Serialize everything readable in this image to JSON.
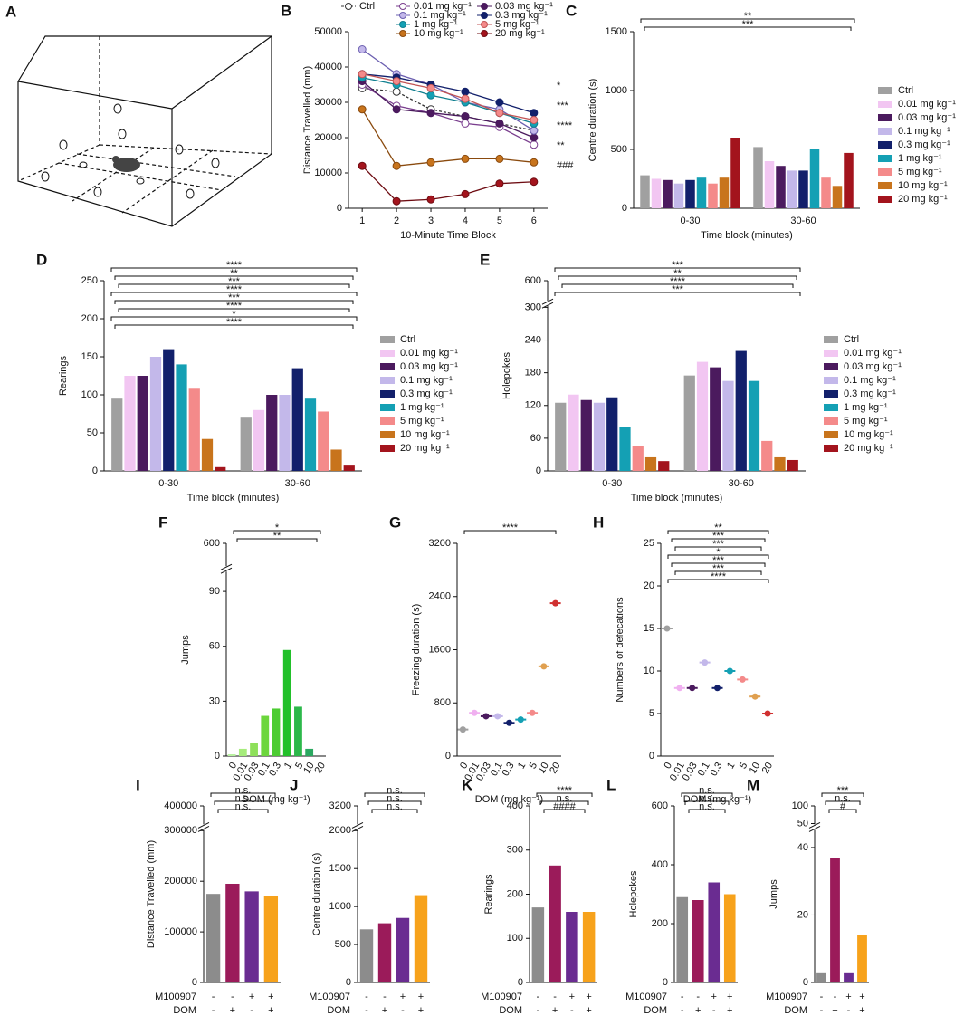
{
  "panel_a": {
    "label": "A"
  },
  "chart_data": [
    {
      "panel": "B",
      "type": "line",
      "xlabel": "10-Minute Time Block",
      "ylabel": "Distance Travelled (mm)",
      "x": [
        1,
        2,
        3,
        4,
        5,
        6
      ],
      "xlim": [
        0.6,
        6.4
      ],
      "xticks": [
        1,
        2,
        3,
        4,
        5,
        6
      ],
      "ylim": [
        0,
        50000
      ],
      "yticks": [
        0,
        10000,
        20000,
        30000,
        40000,
        50000
      ],
      "legend": "top",
      "series": [
        {
          "name": "Ctrl",
          "color": "#333333",
          "fill": "white",
          "dash": true,
          "values": [
            34000,
            33000,
            28000,
            26000,
            24000,
            22000
          ]
        },
        {
          "name": "0.01 mg kg⁻¹",
          "color": "#7a3e8e",
          "fill": "white",
          "values": [
            35000,
            29000,
            27000,
            24000,
            23000,
            18000
          ]
        },
        {
          "name": "0.03 mg kg⁻¹",
          "color": "#4b1a5e",
          "fill": "#4b1a5e",
          "values": [
            36000,
            28000,
            27000,
            26000,
            24000,
            20000
          ]
        },
        {
          "name": "0.1 mg kg⁻¹",
          "color": "#6b5fb0",
          "fill": "#c3b8ea",
          "values": [
            45000,
            38000,
            35000,
            30000,
            28000,
            22000
          ]
        },
        {
          "name": "0.3 mg kg⁻¹",
          "color": "#12206b",
          "fill": "#12206b",
          "values": [
            38000,
            37000,
            35000,
            33000,
            30000,
            27000
          ]
        },
        {
          "name": "1 mg kg⁻¹",
          "color": "#0f7f8f",
          "fill": "#14a0b4",
          "values": [
            37000,
            35000,
            32000,
            30000,
            27000,
            24000
          ]
        },
        {
          "name": "5 mg kg⁻¹",
          "color": "#c25454",
          "fill": "#f48a8a",
          "values": [
            38000,
            36000,
            34000,
            31000,
            27000,
            25000
          ]
        },
        {
          "name": "10 mg kg⁻¹",
          "color": "#8a4a0e",
          "fill": "#c8741c",
          "values": [
            28000,
            12000,
            13000,
            14000,
            14000,
            13000
          ]
        },
        {
          "name": "20 mg kg⁻¹",
          "color": "#6e0c12",
          "fill": "#a3141d",
          "values": [
            12000,
            2000,
            2500,
            4000,
            7000,
            7500
          ]
        }
      ],
      "annotations": [
        "*",
        "***",
        "****",
        "**",
        "###"
      ]
    },
    {
      "panel": "C",
      "type": "bar",
      "xlabel": "Time block (minutes)",
      "ylabel": "Centre duration (s)",
      "categories": [
        "0-30",
        "30-60"
      ],
      "ylim": [
        0,
        1500
      ],
      "yticks": [
        0,
        500,
        1000,
        1500
      ],
      "legend": "right",
      "series": [
        {
          "name": "Ctrl",
          "color": "#a0a0a0",
          "values": [
            280,
            520
          ]
        },
        {
          "name": "0.01 mg kg⁻¹",
          "color": "#f2c6f2",
          "values": [
            250,
            400
          ]
        },
        {
          "name": "0.03 mg kg⁻¹",
          "color": "#4b1a5e",
          "values": [
            240,
            360
          ]
        },
        {
          "name": "0.1 mg kg⁻¹",
          "color": "#c3b8ea",
          "values": [
            210,
            320
          ]
        },
        {
          "name": "0.3 mg kg⁻¹",
          "color": "#12206b",
          "values": [
            240,
            320
          ]
        },
        {
          "name": "1 mg kg⁻¹",
          "color": "#14a0b4",
          "values": [
            260,
            500
          ]
        },
        {
          "name": "5 mg kg⁻¹",
          "color": "#f48a8a",
          "values": [
            210,
            260
          ]
        },
        {
          "name": "10 mg kg⁻¹",
          "color": "#c8741c",
          "values": [
            260,
            190
          ]
        },
        {
          "name": "20 mg kg⁻¹",
          "color": "#a3141d",
          "values": [
            600,
            470
          ]
        }
      ],
      "annotations": [
        "**",
        "***"
      ]
    },
    {
      "panel": "D",
      "type": "bar",
      "xlabel": "Time block (minutes)",
      "ylabel": "Rearings",
      "categories": [
        "0-30",
        "30-60"
      ],
      "ylim": [
        0,
        250
      ],
      "yticks": [
        0,
        50,
        100,
        150,
        200,
        250
      ],
      "legend": "right",
      "series": [
        {
          "name": "Ctrl",
          "color": "#a0a0a0",
          "values": [
            95,
            70
          ]
        },
        {
          "name": "0.01 mg kg⁻¹",
          "color": "#f2c6f2",
          "values": [
            125,
            80
          ]
        },
        {
          "name": "0.03 mg kg⁻¹",
          "color": "#4b1a5e",
          "values": [
            125,
            100
          ]
        },
        {
          "name": "0.1 mg kg⁻¹",
          "color": "#c3b8ea",
          "values": [
            150,
            100
          ]
        },
        {
          "name": "0.3 mg kg⁻¹",
          "color": "#12206b",
          "values": [
            160,
            135
          ]
        },
        {
          "name": "1 mg kg⁻¹",
          "color": "#14a0b4",
          "values": [
            140,
            95
          ]
        },
        {
          "name": "5 mg kg⁻¹",
          "color": "#f48a8a",
          "values": [
            108,
            78
          ]
        },
        {
          "name": "10 mg kg⁻¹",
          "color": "#c8741c",
          "values": [
            42,
            28
          ]
        },
        {
          "name": "20 mg kg⁻¹",
          "color": "#a3141d",
          "values": [
            5,
            7
          ]
        }
      ],
      "annotations": [
        "****",
        "**",
        "***",
        "****",
        "***",
        "****",
        "*",
        "****"
      ]
    },
    {
      "panel": "E",
      "type": "bar",
      "xlabel": "Time block (minutes)",
      "ylabel": "Holepokes",
      "categories": [
        "0-30",
        "30-60"
      ],
      "ylim": [
        0,
        600
      ],
      "ybreak": [
        300,
        580
      ],
      "yticks": [
        0,
        60,
        120,
        180,
        240,
        300,
        600
      ],
      "legend": "right",
      "series": [
        {
          "name": "Ctrl",
          "color": "#a0a0a0",
          "values": [
            125,
            175
          ]
        },
        {
          "name": "0.01 mg kg⁻¹",
          "color": "#f2c6f2",
          "values": [
            140,
            200
          ]
        },
        {
          "name": "0.03 mg kg⁻¹",
          "color": "#4b1a5e",
          "values": [
            130,
            190
          ]
        },
        {
          "name": "0.1 mg kg⁻¹",
          "color": "#c3b8ea",
          "values": [
            125,
            165
          ]
        },
        {
          "name": "0.3 mg kg⁻¹",
          "color": "#12206b",
          "values": [
            135,
            220
          ]
        },
        {
          "name": "1 mg kg⁻¹",
          "color": "#14a0b4",
          "values": [
            80,
            165
          ]
        },
        {
          "name": "5 mg kg⁻¹",
          "color": "#f48a8a",
          "values": [
            45,
            55
          ]
        },
        {
          "name": "10 mg kg⁻¹",
          "color": "#c8741c",
          "values": [
            25,
            25
          ]
        },
        {
          "name": "20 mg kg⁻¹",
          "color": "#a3141d",
          "values": [
            18,
            20
          ]
        }
      ],
      "annotations": [
        "***",
        "**",
        "****",
        "***"
      ]
    },
    {
      "panel": "F",
      "type": "bar",
      "xlabel": "DOM (mg kg⁻¹)",
      "ylabel": "Jumps",
      "categories": [
        "0",
        "0.01",
        "0.03",
        "0.1",
        "0.3",
        "1",
        "5",
        "10",
        "20"
      ],
      "values": [
        1,
        4,
        7,
        22,
        26,
        58,
        27,
        4,
        0
      ],
      "colors": [
        "#b8f0a0",
        "#a6ec7c",
        "#8ee05a",
        "#6cd63c",
        "#4ccc32",
        "#22c02a",
        "#2cb84a",
        "#2aa860",
        "#1f8f50"
      ],
      "ylim": [
        0,
        600
      ],
      "ybreak": [
        100,
        580
      ],
      "yticks": [
        0,
        30,
        60,
        90,
        600
      ],
      "annotations": [
        "*",
        "**"
      ]
    },
    {
      "panel": "G",
      "type": "dot",
      "xlabel": "DOM (mg kg⁻¹)",
      "ylabel": "Freezing duration (s)",
      "categories": [
        "0",
        "0.01",
        "0.03",
        "0.1",
        "0.3",
        "1",
        "5",
        "10",
        "20"
      ],
      "values": [
        400,
        650,
        600,
        600,
        500,
        550,
        650,
        1350,
        2300
      ],
      "colors": [
        "#a0a0a0",
        "#f0b0f0",
        "#4b1a5e",
        "#c3b8ea",
        "#12206b",
        "#14a0b4",
        "#f48a8a",
        "#e0a050",
        "#d03030"
      ],
      "ylim": [
        0,
        3200
      ],
      "yticks": [
        0,
        800,
        1600,
        2400,
        3200
      ],
      "annotations": [
        "****"
      ]
    },
    {
      "panel": "H",
      "type": "dot",
      "xlabel": "DOM (mg kg⁻¹)",
      "ylabel": "Numbers of defecations",
      "categories": [
        "0",
        "0.01",
        "0.03",
        "0.1",
        "0.3",
        "1",
        "5",
        "10",
        "20"
      ],
      "values": [
        15,
        8,
        8,
        11,
        8,
        10,
        9,
        7,
        5
      ],
      "colors": [
        "#a0a0a0",
        "#f0b0f0",
        "#4b1a5e",
        "#c3b8ea",
        "#12206b",
        "#14a0b4",
        "#f48a8a",
        "#e0a050",
        "#d03030"
      ],
      "ylim": [
        0,
        25
      ],
      "yticks": [
        0,
        5,
        10,
        15,
        20,
        25
      ],
      "annotations": [
        "**",
        "***",
        "***",
        "*",
        "***",
        "***",
        "****"
      ]
    },
    {
      "panel": "I",
      "type": "bar",
      "ylabel": "Distance Travelled (mm)",
      "values": [
        175000,
        195000,
        180000,
        170000
      ],
      "colors": [
        "#8c8c8c",
        "#9b1b5a",
        "#6a2c91",
        "#f7a21b"
      ],
      "rows": [
        {
          "name": "M100907",
          "values": [
            "-",
            "-",
            "+",
            "+"
          ]
        },
        {
          "name": "DOM",
          "values": [
            "-",
            "+",
            "-",
            "+"
          ]
        }
      ],
      "ylim": [
        0,
        400000
      ],
      "ybreak": [
        300000,
        390000
      ],
      "yticks": [
        0,
        100000,
        200000,
        300000,
        400000
      ],
      "annotations": [
        "n.s.",
        "n.s.",
        "n.s."
      ]
    },
    {
      "panel": "J",
      "type": "bar",
      "ylabel": "Centre duration (s)",
      "values": [
        700,
        780,
        850,
        1150
      ],
      "colors": [
        "#8c8c8c",
        "#9b1b5a",
        "#6a2c91",
        "#f7a21b"
      ],
      "rows": [
        {
          "name": "M100907",
          "values": [
            "-",
            "-",
            "+",
            "+"
          ]
        },
        {
          "name": "DOM",
          "values": [
            "-",
            "+",
            "-",
            "+"
          ]
        }
      ],
      "ylim": [
        0,
        3200
      ],
      "ybreak": [
        2000,
        3150
      ],
      "yticks": [
        0,
        500,
        1000,
        1500,
        2000,
        3200
      ],
      "annotations": [
        "n.s.",
        "n.s.",
        "n.s."
      ]
    },
    {
      "panel": "K",
      "type": "bar",
      "ylabel": "Rearings",
      "values": [
        170,
        265,
        160,
        160
      ],
      "colors": [
        "#8c8c8c",
        "#9b1b5a",
        "#6a2c91",
        "#f7a21b"
      ],
      "rows": [
        {
          "name": "M100907",
          "values": [
            "-",
            "-",
            "+",
            "+"
          ]
        },
        {
          "name": "DOM",
          "values": [
            "-",
            "+",
            "-",
            "+"
          ]
        }
      ],
      "ylim": [
        0,
        400
      ],
      "yticks": [
        0,
        100,
        200,
        300,
        400
      ],
      "annotations": [
        "****",
        "n.s.",
        "####"
      ]
    },
    {
      "panel": "L",
      "type": "bar",
      "ylabel": "Holepokes",
      "values": [
        290,
        280,
        340,
        300
      ],
      "colors": [
        "#8c8c8c",
        "#9b1b5a",
        "#6a2c91",
        "#f7a21b"
      ],
      "rows": [
        {
          "name": "M100907",
          "values": [
            "-",
            "-",
            "+",
            "+"
          ]
        },
        {
          "name": "DOM",
          "values": [
            "-",
            "+",
            "-",
            "+"
          ]
        }
      ],
      "ylim": [
        0,
        600
      ],
      "yticks": [
        0,
        200,
        400,
        600
      ],
      "annotations": [
        "n.s.",
        "n.s.",
        "n.s."
      ]
    },
    {
      "panel": "M",
      "type": "bar",
      "ylabel": "Jumps",
      "values": [
        3,
        37,
        3,
        14
      ],
      "colors": [
        "#8c8c8c",
        "#9b1b5a",
        "#6a2c91",
        "#f7a21b"
      ],
      "rows": [
        {
          "name": "M100907",
          "values": [
            "-",
            "-",
            "+",
            "+"
          ]
        },
        {
          "name": "DOM",
          "values": [
            "-",
            "+",
            "-",
            "+"
          ]
        }
      ],
      "ylim": [
        0,
        100
      ],
      "ybreak": [
        45,
        50
      ],
      "yticks": [
        0,
        20,
        40,
        50,
        100
      ],
      "annotations": [
        "***",
        "n.s.",
        "#"
      ]
    }
  ]
}
